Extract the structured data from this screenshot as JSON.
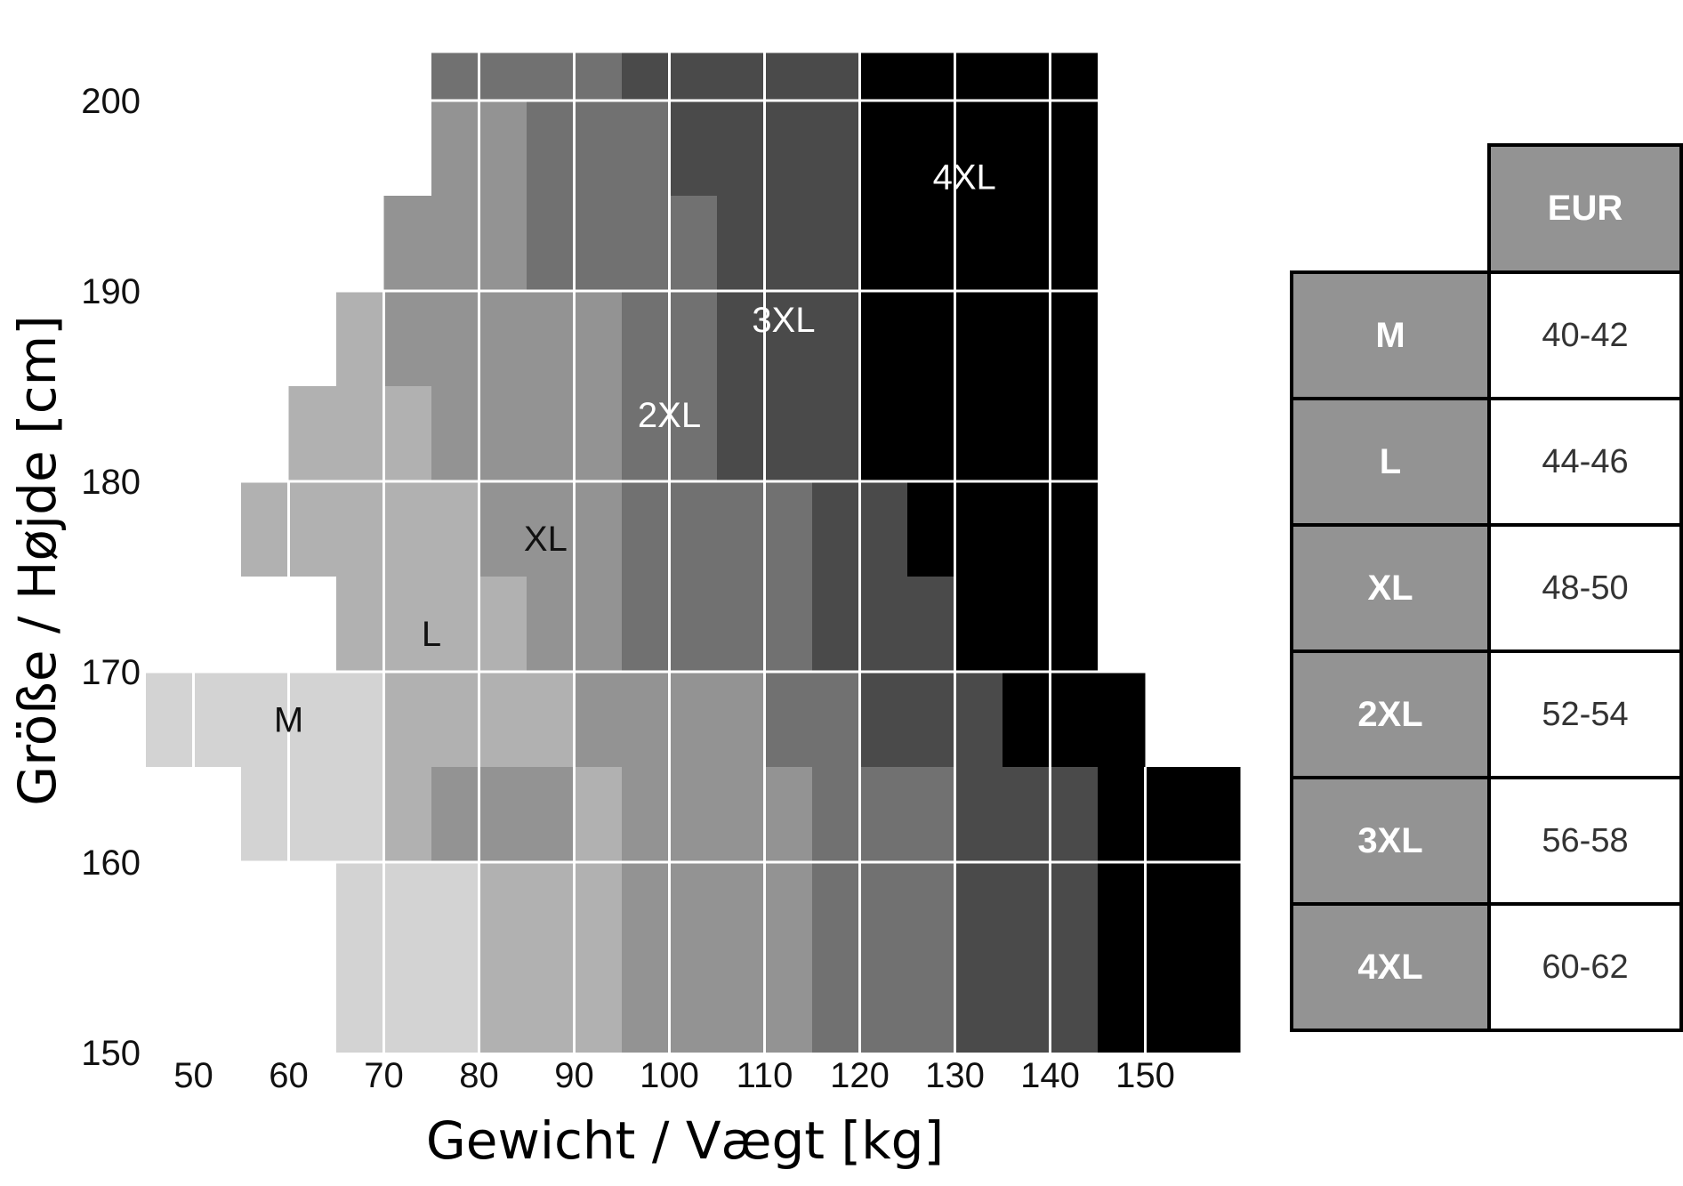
{
  "chart_data": {
    "type": "heatmap",
    "title": "",
    "xlabel": "Gewicht / Vægt [kg]",
    "ylabel": "Größe / Højde [cm]",
    "x_ticks": [
      "50",
      "60",
      "70",
      "80",
      "90",
      "100",
      "110",
      "120",
      "130",
      "140",
      "150"
    ],
    "y_ticks": [
      "150",
      "160",
      "170",
      "180",
      "190",
      "200"
    ],
    "xlim": [
      45,
      160
    ],
    "ylim": [
      150,
      202.5
    ],
    "x_step_kg": 5,
    "y_step_cm": 5,
    "sizes": [
      "M",
      "L",
      "XL",
      "2XL",
      "3XL",
      "4XL"
    ],
    "colors": {
      "M": "#d3d3d3",
      "L": "#b1b1b1",
      "XL": "#939393",
      "2XL": "#717171",
      "3XL": "#4a4a4a",
      "4XL": "#000000",
      "grid": "#ffffff"
    },
    "rows": [
      {
        "y0": 150,
        "y1": 160,
        "cells": [
          [
            65,
            80,
            "M"
          ],
          [
            80,
            95,
            "L"
          ],
          [
            95,
            115,
            "XL"
          ],
          [
            115,
            130,
            "2XL"
          ],
          [
            130,
            145,
            "3XL"
          ],
          [
            145,
            160,
            "4XL"
          ]
        ]
      },
      {
        "y0": 160,
        "y1": 165,
        "cells": [
          [
            55,
            70,
            "M"
          ],
          [
            70,
            75,
            "L"
          ],
          [
            75,
            90,
            "XL"
          ],
          [
            90,
            95,
            "L"
          ],
          [
            95,
            110,
            "XL"
          ],
          [
            110,
            115,
            "XL"
          ],
          [
            115,
            130,
            "2XL"
          ],
          [
            130,
            145,
            "3XL"
          ],
          [
            145,
            160,
            "4XL"
          ]
        ]
      },
      {
        "y0": 165,
        "y1": 170,
        "cells": [
          [
            45,
            70,
            "M"
          ],
          [
            70,
            90,
            "L"
          ],
          [
            90,
            110,
            "XL"
          ],
          [
            110,
            120,
            "2XL"
          ],
          [
            120,
            135,
            "3XL"
          ],
          [
            135,
            150,
            "4XL"
          ]
        ]
      },
      {
        "y0": 170,
        "y1": 175,
        "cells": [
          [
            65,
            70,
            "L"
          ],
          [
            70,
            80,
            "L"
          ],
          [
            80,
            85,
            "L"
          ],
          [
            85,
            95,
            "XL"
          ],
          [
            95,
            110,
            "2XL"
          ],
          [
            110,
            115,
            "2XL"
          ],
          [
            115,
            130,
            "3XL"
          ],
          [
            130,
            145,
            "4XL"
          ]
        ]
      },
      {
        "y0": 175,
        "y1": 180,
        "cells": [
          [
            55,
            80,
            "L"
          ],
          [
            80,
            95,
            "XL"
          ],
          [
            95,
            100,
            "2XL"
          ],
          [
            100,
            115,
            "2XL"
          ],
          [
            115,
            125,
            "3XL"
          ],
          [
            125,
            145,
            "4XL"
          ]
        ]
      },
      {
        "y0": 180,
        "y1": 185,
        "cells": [
          [
            60,
            70,
            "L"
          ],
          [
            70,
            75,
            "L"
          ],
          [
            75,
            95,
            "XL"
          ],
          [
            95,
            105,
            "2XL"
          ],
          [
            105,
            120,
            "3XL"
          ],
          [
            120,
            145,
            "4XL"
          ]
        ]
      },
      {
        "y0": 185,
        "y1": 190,
        "cells": [
          [
            65,
            70,
            "L"
          ],
          [
            70,
            95,
            "XL"
          ],
          [
            95,
            105,
            "2XL"
          ],
          [
            105,
            120,
            "3XL"
          ],
          [
            120,
            145,
            "4XL"
          ]
        ]
      },
      {
        "y0": 190,
        "y1": 195,
        "cells": [
          [
            70,
            85,
            "XL"
          ],
          [
            85,
            100,
            "2XL"
          ],
          [
            100,
            105,
            "2XL"
          ],
          [
            105,
            120,
            "3XL"
          ],
          [
            120,
            145,
            "4XL"
          ]
        ]
      },
      {
        "y0": 195,
        "y1": 200,
        "cells": [
          [
            75,
            85,
            "XL"
          ],
          [
            85,
            100,
            "2XL"
          ],
          [
            100,
            120,
            "3XL"
          ],
          [
            120,
            145,
            "4XL"
          ]
        ]
      },
      {
        "y0": 200,
        "y1": 202.5,
        "cells": [
          [
            75,
            95,
            "2XL"
          ],
          [
            95,
            120,
            "3XL"
          ],
          [
            120,
            145,
            "4XL"
          ]
        ]
      }
    ],
    "zone_labels": [
      {
        "text": "M",
        "x": 60,
        "y": 167.5,
        "color": "#111111"
      },
      {
        "text": "L",
        "x": 75,
        "y": 172,
        "color": "#111111"
      },
      {
        "text": "XL",
        "x": 87,
        "y": 177,
        "color": "#111111"
      },
      {
        "text": "2XL",
        "x": 100,
        "y": 183.5,
        "color": "#ffffff"
      },
      {
        "text": "3XL",
        "x": 112,
        "y": 188.5,
        "color": "#ffffff"
      },
      {
        "text": "4XL",
        "x": 131,
        "y": 196,
        "color": "#ffffff"
      }
    ]
  },
  "table": {
    "header": "EUR",
    "rows": [
      {
        "size": "M",
        "eur": "40-42"
      },
      {
        "size": "L",
        "eur": "44-46"
      },
      {
        "size": "XL",
        "eur": "48-50"
      },
      {
        "size": "2XL",
        "eur": "52-54"
      },
      {
        "size": "3XL",
        "eur": "56-58"
      },
      {
        "size": "4XL",
        "eur": "60-62"
      }
    ]
  }
}
